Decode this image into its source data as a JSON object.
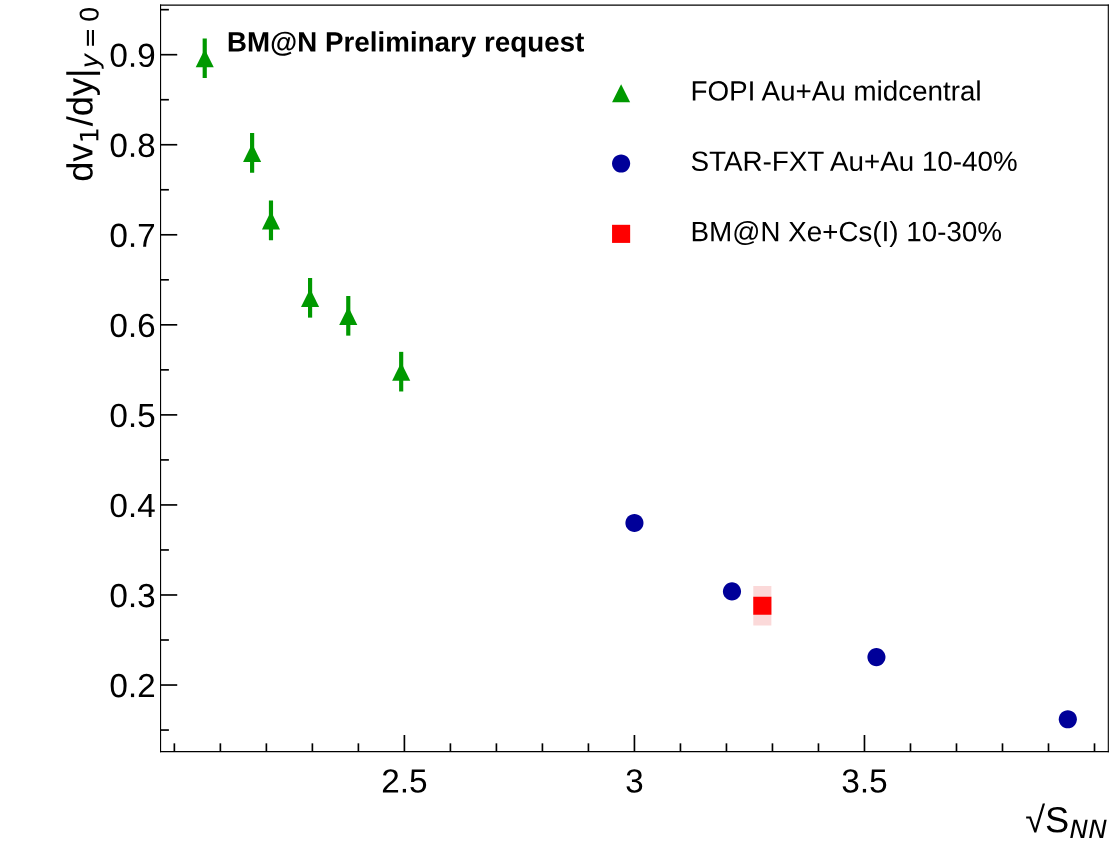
{
  "chart_data": {
    "type": "scatter",
    "xlabel": "√S$_{NN}$",
    "ylabel": "dv$_{1}$/dy|$_{y=0}$",
    "annotations": [
      "BM@N Preliminary request"
    ],
    "xlim": [
      1.97,
      4.03
    ],
    "ylim": [
      0.126,
      0.955
    ],
    "xticks": [
      2.5,
      3,
      3.5
    ],
    "yticks": [
      0.2,
      0.3,
      0.4,
      0.5,
      0.6,
      0.7,
      0.8,
      0.9
    ],
    "grid": false,
    "legend": "top right",
    "series": [
      {
        "name": "FOPI Au+Au midcentral",
        "color": "#009900",
        "marker": "triangle",
        "x": [
          2.066,
          2.169,
          2.21,
          2.295,
          2.378,
          2.493
        ],
        "values": [
          0.896,
          0.791,
          0.716,
          0.63,
          0.61,
          0.548
        ],
        "errors": [
          0.022,
          0.022,
          0.022,
          0.022,
          0.022,
          0.022
        ]
      },
      {
        "name": "STAR-FXT Au+Au 10-40%",
        "color": "#000099",
        "marker": "circle",
        "x": [
          3.0,
          3.212,
          3.526,
          3.942
        ],
        "values": [
          0.38,
          0.304,
          0.231,
          0.162
        ]
      },
      {
        "name": "BM@N Xe+Cs(I) 10-30%",
        "color": "#ff0000",
        "marker": "square",
        "x": [
          3.278
        ],
        "values": [
          0.288
        ],
        "errors": [
          0.022
        ],
        "xerrors": [
          0.02
        ]
      }
    ]
  }
}
